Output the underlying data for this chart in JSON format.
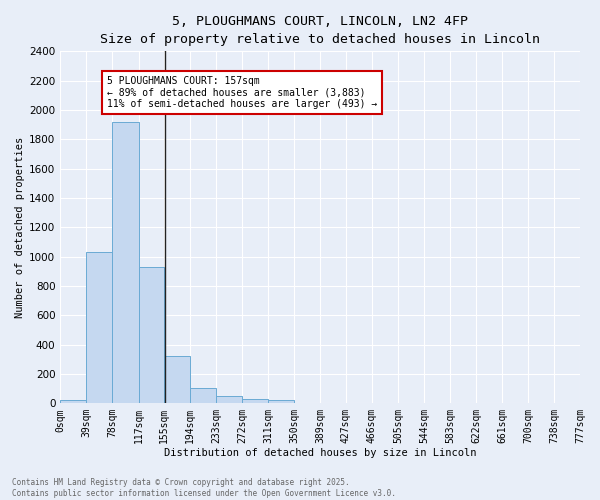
{
  "title": "5, PLOUGHMANS COURT, LINCOLN, LN2 4FP",
  "subtitle": "Size of property relative to detached houses in Lincoln",
  "xlabel": "Distribution of detached houses by size in Lincoln",
  "ylabel": "Number of detached properties",
  "bar_values": [
    20,
    1030,
    1920,
    930,
    320,
    105,
    47,
    27,
    20,
    0,
    0,
    0,
    0,
    0,
    0,
    0,
    0,
    0,
    0,
    0
  ],
  "bin_edges": [
    0,
    39,
    78,
    117,
    155,
    194,
    233,
    272,
    311,
    350,
    389,
    427,
    466,
    505,
    544,
    583,
    622,
    661,
    700,
    738,
    777
  ],
  "tick_labels": [
    "0sqm",
    "39sqm",
    "78sqm",
    "117sqm",
    "155sqm",
    "194sqm",
    "233sqm",
    "272sqm",
    "311sqm",
    "350sqm",
    "389sqm",
    "427sqm",
    "466sqm",
    "505sqm",
    "544sqm",
    "583sqm",
    "622sqm",
    "661sqm",
    "700sqm",
    "738sqm",
    "777sqm"
  ],
  "bar_color": "#c5d8f0",
  "bar_edge_color": "#6aaad4",
  "vline_x": 157,
  "ylim": [
    0,
    2400
  ],
  "yticks": [
    0,
    200,
    400,
    600,
    800,
    1000,
    1200,
    1400,
    1600,
    1800,
    2000,
    2200,
    2400
  ],
  "annotation_text": "5 PLOUGHMANS COURT: 157sqm\n← 89% of detached houses are smaller (3,883)\n11% of semi-detached houses are larger (493) →",
  "annotation_box_color": "#ffffff",
  "annotation_border_color": "#cc0000",
  "footer_line1": "Contains HM Land Registry data © Crown copyright and database right 2025.",
  "footer_line2": "Contains public sector information licensed under the Open Government Licence v3.0.",
  "bg_color": "#e8eef8",
  "grid_color": "#ffffff",
  "title_fontsize": 9.5,
  "label_fontsize": 7.5,
  "tick_fontsize": 7,
  "ytick_fontsize": 7.5,
  "annot_fontsize": 7,
  "footer_fontsize": 5.5
}
